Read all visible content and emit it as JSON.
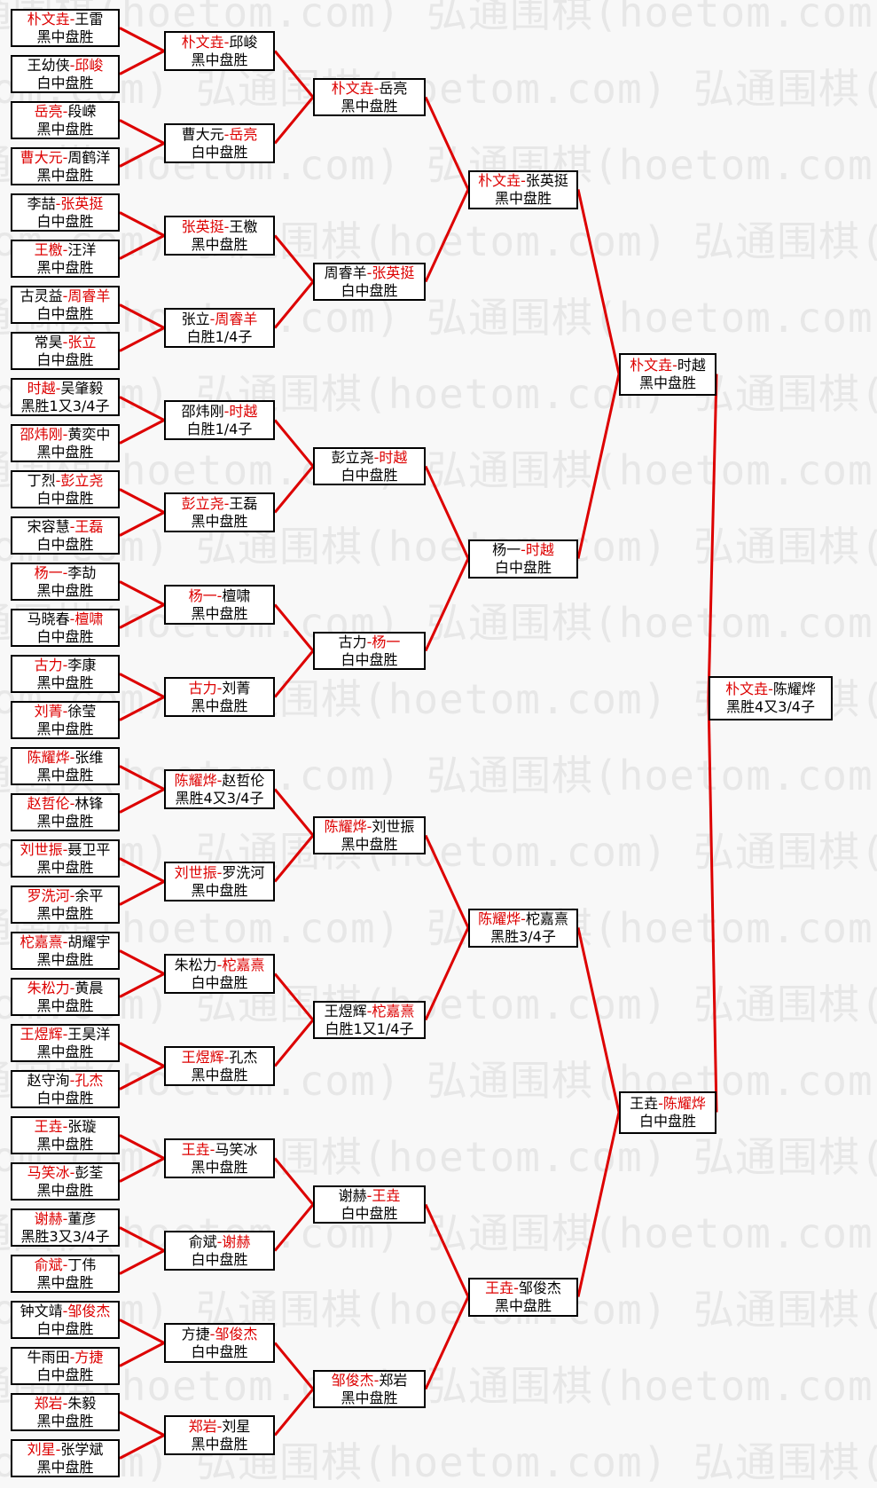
{
  "watermark": {
    "text": "弘通围棋(hoetom.com)",
    "color": "#e7e7e7"
  },
  "colors": {
    "winner_text": "#dd0000",
    "connector_line": "#dd0000",
    "box_border": "#000000",
    "box_background": "#ffffff",
    "loser_text": "#000000",
    "page_background": "#f8f8f8"
  },
  "bracket": {
    "rounds": [
      {
        "name": "round_of_64",
        "matches": [
          {
            "p1": "朴文垚",
            "p2": "王雷",
            "winner": 1,
            "result": "黑中盘胜"
          },
          {
            "p1": "王幼侠",
            "p2": "邱峻",
            "winner": 2,
            "result": "白中盘胜"
          },
          {
            "p1": "岳亮",
            "p2": "段嵘",
            "winner": 1,
            "result": "黑中盘胜"
          },
          {
            "p1": "曹大元",
            "p2": "周鹤洋",
            "winner": 1,
            "result": "黑中盘胜"
          },
          {
            "p1": "李喆",
            "p2": "张英挺",
            "winner": 2,
            "result": "白中盘胜"
          },
          {
            "p1": "王檄",
            "p2": "汪洋",
            "winner": 1,
            "result": "黑中盘胜"
          },
          {
            "p1": "古灵益",
            "p2": "周睿羊",
            "winner": 2,
            "result": "白中盘胜"
          },
          {
            "p1": "常昊",
            "p2": "张立",
            "winner": 2,
            "result": "白中盘胜"
          },
          {
            "p1": "时越",
            "p2": "吴肇毅",
            "winner": 1,
            "result": "黑胜1又3/4子"
          },
          {
            "p1": "邵炜刚",
            "p2": "黄奕中",
            "winner": 1,
            "result": "黑中盘胜"
          },
          {
            "p1": "丁烈",
            "p2": "彭立尧",
            "winner": 2,
            "result": "白中盘胜"
          },
          {
            "p1": "宋容慧",
            "p2": "王磊",
            "winner": 2,
            "result": "白中盘胜"
          },
          {
            "p1": "杨一",
            "p2": "李劼",
            "winner": 1,
            "result": "黑中盘胜"
          },
          {
            "p1": "马晓春",
            "p2": "檀啸",
            "winner": 2,
            "result": "白中盘胜"
          },
          {
            "p1": "古力",
            "p2": "李康",
            "winner": 1,
            "result": "黑中盘胜"
          },
          {
            "p1": "刘菁",
            "p2": "徐莹",
            "winner": 1,
            "result": "黑中盘胜"
          },
          {
            "p1": "陈耀烨",
            "p2": "张维",
            "winner": 1,
            "result": "黑中盘胜"
          },
          {
            "p1": "赵哲伦",
            "p2": "林锋",
            "winner": 1,
            "result": "黑中盘胜"
          },
          {
            "p1": "刘世振",
            "p2": "聂卫平",
            "winner": 1,
            "result": "黑中盘胜"
          },
          {
            "p1": "罗洗河",
            "p2": "余平",
            "winner": 1,
            "result": "黑中盘胜"
          },
          {
            "p1": "柁嘉熹",
            "p2": "胡耀宇",
            "winner": 1,
            "result": "黑中盘胜"
          },
          {
            "p1": "朱松力",
            "p2": "黄晨",
            "winner": 1,
            "result": "黑中盘胜"
          },
          {
            "p1": "王煜辉",
            "p2": "王昊洋",
            "winner": 1,
            "result": "黑中盘胜"
          },
          {
            "p1": "赵守洵",
            "p2": "孔杰",
            "winner": 2,
            "result": "白中盘胜"
          },
          {
            "p1": "王垚",
            "p2": "张璇",
            "winner": 1,
            "result": "黑中盘胜"
          },
          {
            "p1": "马笑冰",
            "p2": "彭荃",
            "winner": 1,
            "result": "黑中盘胜"
          },
          {
            "p1": "谢赫",
            "p2": "董彦",
            "winner": 1,
            "result": "黑胜3又3/4子"
          },
          {
            "p1": "俞斌",
            "p2": "丁伟",
            "winner": 1,
            "result": "黑中盘胜"
          },
          {
            "p1": "钟文靖",
            "p2": "邹俊杰",
            "winner": 2,
            "result": "白中盘胜"
          },
          {
            "p1": "牛雨田",
            "p2": "方捷",
            "winner": 2,
            "result": "白中盘胜"
          },
          {
            "p1": "郑岩",
            "p2": "朱毅",
            "winner": 1,
            "result": "黑中盘胜"
          },
          {
            "p1": "刘星",
            "p2": "张学斌",
            "winner": 1,
            "result": "黑中盘胜"
          }
        ]
      },
      {
        "name": "round_of_32",
        "matches": [
          {
            "p1": "朴文垚",
            "p2": "邱峻",
            "winner": 1,
            "result": "黑中盘胜"
          },
          {
            "p1": "曹大元",
            "p2": "岳亮",
            "winner": 2,
            "result": "白中盘胜"
          },
          {
            "p1": "张英挺",
            "p2": "王檄",
            "winner": 1,
            "result": "黑中盘胜"
          },
          {
            "p1": "张立",
            "p2": "周睿羊",
            "winner": 2,
            "result": "白胜1/4子"
          },
          {
            "p1": "邵炜刚",
            "p2": "时越",
            "winner": 2,
            "result": "白胜1/4子"
          },
          {
            "p1": "彭立尧",
            "p2": "王磊",
            "winner": 1,
            "result": "黑中盘胜"
          },
          {
            "p1": "杨一",
            "p2": "檀啸",
            "winner": 1,
            "result": "黑中盘胜"
          },
          {
            "p1": "古力",
            "p2": "刘菁",
            "winner": 1,
            "result": "黑中盘胜"
          },
          {
            "p1": "陈耀烨",
            "p2": "赵哲伦",
            "winner": 1,
            "result": "黑胜4又3/4子"
          },
          {
            "p1": "刘世振",
            "p2": "罗洗河",
            "winner": 1,
            "result": "黑中盘胜"
          },
          {
            "p1": "朱松力",
            "p2": "柁嘉熹",
            "winner": 2,
            "result": "白中盘胜"
          },
          {
            "p1": "王煜辉",
            "p2": "孔杰",
            "winner": 1,
            "result": "黑中盘胜"
          },
          {
            "p1": "王垚",
            "p2": "马笑冰",
            "winner": 1,
            "result": "黑中盘胜"
          },
          {
            "p1": "俞斌",
            "p2": "谢赫",
            "winner": 2,
            "result": "白中盘胜"
          },
          {
            "p1": "方捷",
            "p2": "邹俊杰",
            "winner": 2,
            "result": "白中盘胜"
          },
          {
            "p1": "郑岩",
            "p2": "刘星",
            "winner": 1,
            "result": "黑中盘胜"
          }
        ]
      },
      {
        "name": "round_of_16",
        "matches": [
          {
            "p1": "朴文垚",
            "p2": "岳亮",
            "winner": 1,
            "result": "黑中盘胜"
          },
          {
            "p1": "周睿羊",
            "p2": "张英挺",
            "winner": 2,
            "result": "白中盘胜"
          },
          {
            "p1": "彭立尧",
            "p2": "时越",
            "winner": 2,
            "result": "白中盘胜"
          },
          {
            "p1": "古力",
            "p2": "杨一",
            "winner": 2,
            "result": "白中盘胜"
          },
          {
            "p1": "陈耀烨",
            "p2": "刘世振",
            "winner": 1,
            "result": "黑中盘胜"
          },
          {
            "p1": "王煜辉",
            "p2": "柁嘉熹",
            "winner": 2,
            "result": "白胜1又1/4子"
          },
          {
            "p1": "谢赫",
            "p2": "王垚",
            "winner": 2,
            "result": "白中盘胜"
          },
          {
            "p1": "邹俊杰",
            "p2": "郑岩",
            "winner": 1,
            "result": "黑中盘胜"
          }
        ]
      },
      {
        "name": "quarterfinals",
        "matches": [
          {
            "p1": "朴文垚",
            "p2": "张英挺",
            "winner": 1,
            "result": "黑中盘胜"
          },
          {
            "p1": "杨一",
            "p2": "时越",
            "winner": 2,
            "result": "白中盘胜"
          },
          {
            "p1": "陈耀烨",
            "p2": "柁嘉熹",
            "winner": 1,
            "result": "黑胜3/4子"
          },
          {
            "p1": "王垚",
            "p2": "邹俊杰",
            "winner": 1,
            "result": "黑中盘胜"
          }
        ]
      },
      {
        "name": "semifinals",
        "matches": [
          {
            "p1": "朴文垚",
            "p2": "时越",
            "winner": 1,
            "result": "黑中盘胜"
          },
          {
            "p1": "王垚",
            "p2": "陈耀烨",
            "winner": 2,
            "result": "白中盘胜"
          }
        ]
      },
      {
        "name": "final",
        "matches": [
          {
            "p1": "朴文垚",
            "p2": "陈耀烨",
            "winner": 1,
            "result": "黑胜4又3/4子"
          }
        ]
      }
    ]
  }
}
